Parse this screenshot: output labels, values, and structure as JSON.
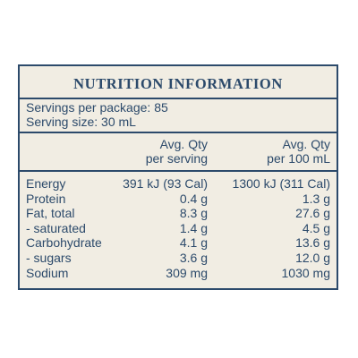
{
  "title": "NUTRITION INFORMATION",
  "servings_per_package": "Servings per package: 85",
  "serving_size": "Serving size: 30 mL",
  "columns": {
    "per_serving": [
      "Avg. Qty",
      "per serving"
    ],
    "per_100": [
      "Avg. Qty",
      "per 100 mL"
    ]
  },
  "rows": [
    {
      "name": "Energy",
      "per_serving": "391 kJ (93 Cal)",
      "per_100": "1300 kJ (311 Cal)"
    },
    {
      "name": "Protein",
      "per_serving": "0.4 g",
      "per_100": "1.3 g"
    },
    {
      "name": "Fat, total",
      "per_serving": "8.3 g",
      "per_100": "27.6 g"
    },
    {
      "name": "- saturated",
      "per_serving": "1.4 g",
      "per_100": "4.5 g"
    },
    {
      "name": "Carbohydrate",
      "per_serving": "4.1 g",
      "per_100": "13.6 g"
    },
    {
      "name": "- sugars",
      "per_serving": "3.6 g",
      "per_100": "12.0 g"
    },
    {
      "name": "Sodium",
      "per_serving": "309 mg",
      "per_100": "1030 mg"
    }
  ],
  "colors": {
    "ink": "#2c4a6b",
    "background": "#f1ede3"
  }
}
